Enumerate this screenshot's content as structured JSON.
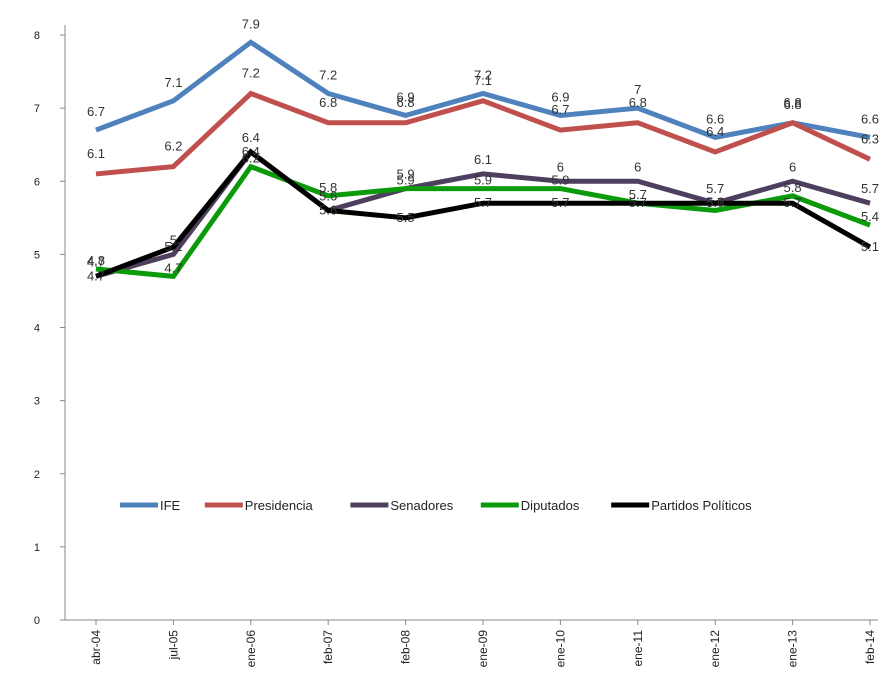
{
  "chart_data": {
    "type": "line",
    "title": "",
    "xlabel": "",
    "ylabel": "",
    "ylim": [
      0,
      8
    ],
    "yticks": [
      "0",
      "1",
      "2",
      "3",
      "4",
      "5",
      "6",
      "7",
      "8"
    ],
    "categories": [
      "abr-04",
      "jul-05",
      "ene-06",
      "feb-07",
      "feb-08",
      "ene-09",
      "ene-10",
      "ene-11",
      "ene-12",
      "ene-13",
      "feb-14"
    ],
    "grid": false,
    "legend": "center-bottom",
    "series": [
      {
        "name": "IFE",
        "color": "#4F81BD",
        "values": [
          6.7,
          7.1,
          7.9,
          7.2,
          6.9,
          7.2,
          6.9,
          7.0,
          6.6,
          6.8,
          6.6
        ]
      },
      {
        "name": "Presidencia",
        "color": "#C0504D",
        "values": [
          6.1,
          6.2,
          7.2,
          6.8,
          6.8,
          7.1,
          6.7,
          6.8,
          6.4,
          6.8,
          6.3
        ]
      },
      {
        "name": "Senadores",
        "color": "#4F3F5F",
        "values": [
          4.7,
          5.0,
          6.4,
          5.6,
          5.9,
          6.1,
          6.0,
          6.0,
          5.7,
          6.0,
          5.7
        ]
      },
      {
        "name": "Diputados",
        "color": "#0A9A0A",
        "values": [
          4.8,
          4.7,
          6.2,
          5.8,
          5.9,
          5.9,
          5.9,
          5.7,
          5.6,
          5.8,
          5.4
        ]
      },
      {
        "name": "Partidos Políticos",
        "color": "#000000",
        "values": [
          4.7,
          5.1,
          6.4,
          5.6,
          5.5,
          5.7,
          5.7,
          5.7,
          5.7,
          5.7,
          5.1
        ]
      }
    ]
  }
}
